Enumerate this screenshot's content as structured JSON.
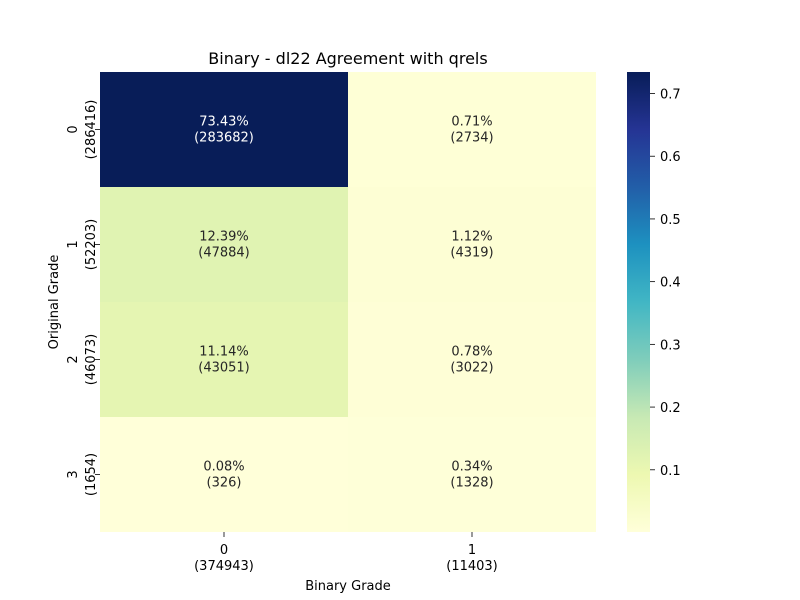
{
  "chart_data": {
    "type": "heatmap",
    "title": "Binary - dl22 Agreement with qrels",
    "xlabel": "Binary Grade",
    "ylabel": "Original Grade",
    "x_ticks": [
      {
        "label": "0",
        "count": "(374943)"
      },
      {
        "label": "1",
        "count": "(11403)"
      }
    ],
    "y_ticks": [
      {
        "label": "0",
        "count": "(286416)"
      },
      {
        "label": "1",
        "count": "(52203)"
      },
      {
        "label": "2",
        "count": "(46073)"
      },
      {
        "label": "3",
        "count": "(1654)"
      }
    ],
    "cells": [
      [
        {
          "value": 0.7343,
          "pct": "73.43%",
          "count": "(283682)"
        },
        {
          "value": 0.0071,
          "pct": "0.71%",
          "count": "(2734)"
        }
      ],
      [
        {
          "value": 0.1239,
          "pct": "12.39%",
          "count": "(47884)"
        },
        {
          "value": 0.0112,
          "pct": "1.12%",
          "count": "(4319)"
        }
      ],
      [
        {
          "value": 0.1114,
          "pct": "11.14%",
          "count": "(43051)"
        },
        {
          "value": 0.0078,
          "pct": "0.78%",
          "count": "(3022)"
        }
      ],
      [
        {
          "value": 0.0008,
          "pct": "0.08%",
          "count": "(326)"
        },
        {
          "value": 0.0034,
          "pct": "0.34%",
          "count": "(1328)"
        }
      ]
    ],
    "colorbar": {
      "colormap": "YlGnBu",
      "vmin": 0.0008,
      "vmax": 0.7343,
      "ticks": [
        {
          "value": 0.1,
          "label": "0.1"
        },
        {
          "value": 0.2,
          "label": "0.2"
        },
        {
          "value": 0.3,
          "label": "0.3"
        },
        {
          "value": 0.4,
          "label": "0.4"
        },
        {
          "value": 0.5,
          "label": "0.5"
        },
        {
          "value": 0.6,
          "label": "0.6"
        },
        {
          "value": 0.7,
          "label": "0.7"
        }
      ]
    }
  }
}
